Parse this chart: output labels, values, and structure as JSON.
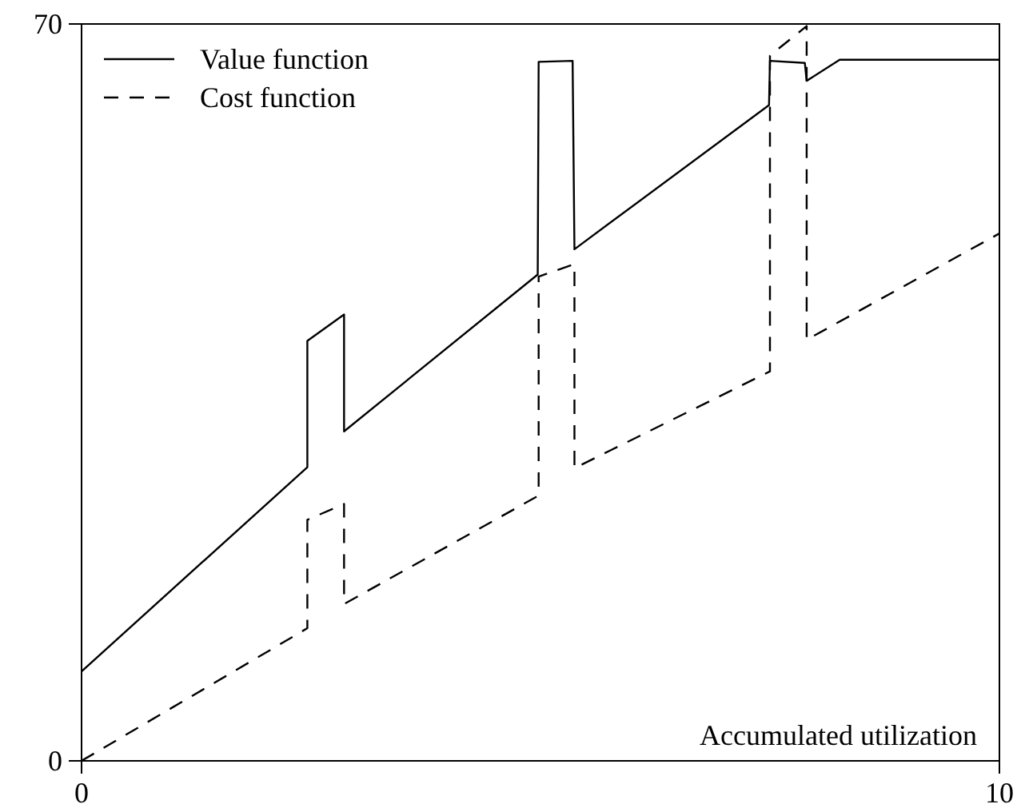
{
  "chart_data": {
    "type": "line",
    "xlabel": "Accumulated utilization",
    "xlim": [
      0,
      10
    ],
    "ylim": [
      0,
      70
    ],
    "xticks": [
      0,
      10
    ],
    "yticks": [
      0,
      70
    ],
    "legend": "top left",
    "series": [
      {
        "name": "Value function",
        "color": "#000000",
        "line_style": "solid",
        "x": [
          0,
          2.46,
          2.46,
          2.86,
          2.86,
          4.97,
          4.98,
          5.35,
          5.37,
          7.49,
          7.5,
          7.88,
          7.9,
          8.26,
          10
        ],
        "values": [
          8.5,
          27.9,
          39.9,
          42.4,
          31.3,
          46.2,
          66.4,
          66.5,
          48.6,
          62.3,
          66.5,
          66.3,
          64.6,
          66.6,
          66.6
        ]
      },
      {
        "name": "Cost function",
        "color": "#000000",
        "line_style": "dashed",
        "x": [
          0,
          2.46,
          2.46,
          2.86,
          2.86,
          4.98,
          4.98,
          5.37,
          5.37,
          7.5,
          7.5,
          7.9,
          7.9,
          10
        ],
        "values": [
          0,
          12.6,
          22.9,
          24.4,
          14.9,
          25.2,
          46,
          47.2,
          27.8,
          37,
          67,
          69.8,
          40,
          50.1
        ]
      }
    ]
  }
}
